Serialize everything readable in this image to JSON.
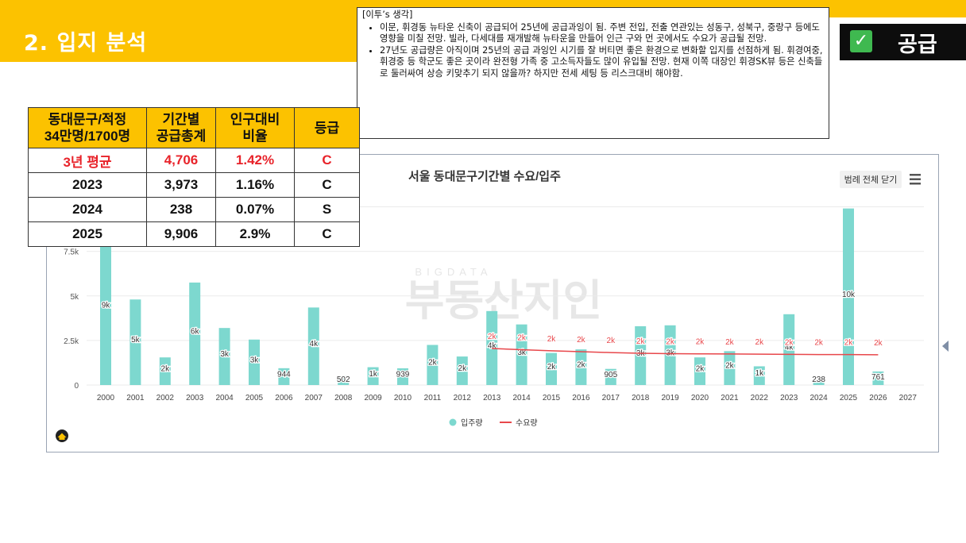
{
  "header": {
    "title": "2. 입지 분석",
    "badge_label": "공급",
    "badge_icon": "check-icon"
  },
  "note": {
    "heading": "[이투’s 생각]",
    "bullets": [
      "이문, 휘경동 뉴타운 신축이 공급되어 25년에 공급과잉이 됨. 주변 전입, 전출 연관있는 성동구, 성북구, 중랑구 등에도 영향을 미칠 전망. 빌라, 다세대를 재개발해 뉴타운을 만들어 인근 구와 먼 곳에서도 수요가 공급될 전망.",
      "27년도 공급량은 아직이며 25년의 공급 과잉인 시기를 잘 버티면 좋은 환경으로 변화할 입지를 선점하게 됨. 휘경여중, 휘경중 등 학군도 좋은 곳이라 완전형 가족 중 고소득자들도 많이 유입될 전망. 현재 이쪽 대장인 휘경SK뷰 등은 신축들로 둘러싸여 상승 키맞추기 되지 않을까? 하지만 전세 세팅 등 리스크대비 해야함."
    ]
  },
  "grade_table": {
    "headers": [
      "동대문구/적정\n34만명/1700명",
      "기간별\n공급총계",
      "인구대비\n비율",
      "등급"
    ],
    "rows": [
      [
        "3년 평균",
        "4,706",
        "1.42%",
        "C"
      ],
      [
        "2023",
        "3,973",
        "1.16%",
        "C"
      ],
      [
        "2024",
        "238",
        "0.07%",
        "S"
      ],
      [
        "2025",
        "9,906",
        "2.9%",
        "C"
      ]
    ]
  },
  "chart_ui": {
    "legend_toggle": "범례 전체 닫기",
    "menu_icon": "hamburger-menu-icon",
    "logo_icon": "home-logo-icon",
    "watermark": "부동산지인",
    "watermark_small": "BIGDATA"
  },
  "chart_data": {
    "type": "bar",
    "title": "서울 동대문구기간별 수요/입주",
    "xlabel": "",
    "ylabel": "",
    "categories": [
      "2000",
      "2001",
      "2002",
      "2003",
      "2004",
      "2005",
      "2006",
      "2007",
      "2008",
      "2009",
      "2010",
      "2011",
      "2012",
      "2013",
      "2014",
      "2015",
      "2016",
      "2017",
      "2018",
      "2019",
      "2020",
      "2021",
      "2022",
      "2023",
      "2024",
      "2025",
      "2026",
      "2027"
    ],
    "yticks": [
      "0",
      "2.5k",
      "5k",
      "7.5k"
    ],
    "ylim": [
      0,
      10000
    ],
    "grid": true,
    "legend_position": "bottom",
    "series": [
      {
        "name": "입주량",
        "kind": "bar",
        "color": "#7dd8cf",
        "values": [
          8700,
          4800,
          1550,
          5750,
          3200,
          2550,
          944,
          4350,
          502,
          1000,
          939,
          2250,
          1600,
          4150,
          3400,
          1800,
          2000,
          905,
          3300,
          3350,
          1550,
          1900,
          1050,
          3973,
          238,
          9906,
          761,
          null
        ],
        "labels": [
          "9k",
          "5k",
          "2k",
          "6k",
          "3k",
          "3k",
          "944",
          "4k",
          "502",
          "1k",
          "939",
          "2k",
          "2k",
          "4k",
          "3k",
          "2k",
          "2k",
          "905",
          "3k",
          "3k",
          "2k",
          "2k",
          "1k",
          "4k",
          "238",
          "10k",
          "761",
          ""
        ]
      },
      {
        "name": "수요량",
        "kind": "line",
        "color": "#e8474b",
        "values": [
          null,
          null,
          null,
          null,
          null,
          null,
          null,
          null,
          null,
          null,
          null,
          null,
          null,
          2050,
          1980,
          1920,
          1870,
          1820,
          1780,
          1760,
          1750,
          1740,
          1730,
          1720,
          1710,
          1710,
          1700,
          null
        ],
        "labels": [
          "",
          "",
          "",
          "",
          "",
          "",
          "",
          "",
          "",
          "",
          "",
          "",
          "",
          "2k",
          "2k",
          "2k",
          "2k",
          "2k",
          "2k",
          "2k",
          "2k",
          "2k",
          "2k",
          "2k",
          "2k",
          "2k",
          "2k",
          ""
        ]
      }
    ]
  }
}
